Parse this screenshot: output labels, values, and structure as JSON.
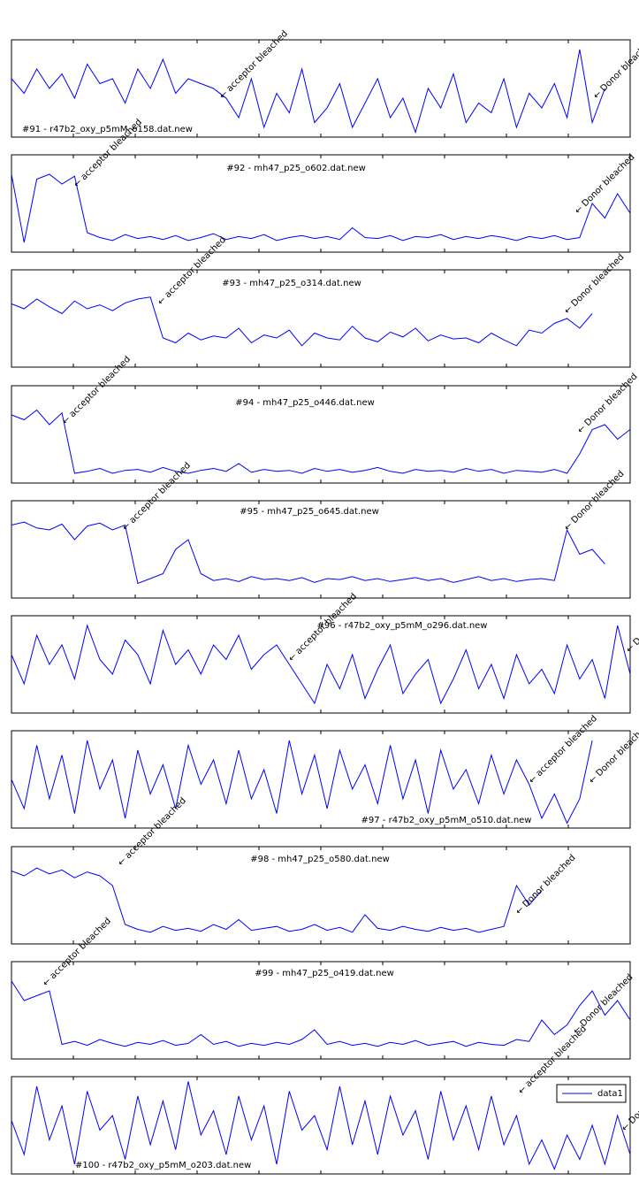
{
  "chart_data": [
    {
      "type": "line",
      "title": "#91 - r47b2_oxy_p5mM_o158.dat.new",
      "annotations": [
        "← acceptor bleached",
        "← Donor bleached"
      ],
      "color": "#0000ff",
      "ylim": [
        0,
        1
      ],
      "values": [
        0.6,
        0.45,
        0.7,
        0.5,
        0.65,
        0.4,
        0.75,
        0.55,
        0.6,
        0.35,
        0.7,
        0.5,
        0.8,
        0.45,
        0.6,
        0.55,
        0.5,
        0.4,
        0.2,
        0.6,
        0.1,
        0.45,
        0.25,
        0.7,
        0.15,
        0.3,
        0.55,
        0.1,
        0.35,
        0.6,
        0.2,
        0.4,
        0.05,
        0.5,
        0.3,
        0.65,
        0.15,
        0.35,
        0.25,
        0.6,
        0.1,
        0.45,
        0.3,
        0.55,
        0.2,
        0.9,
        0.15,
        0.5,
        null,
        null
      ]
    },
    {
      "type": "line",
      "title": "#92 - mh47_p25_o602.dat.new",
      "annotations": [
        "← acceptor bleached",
        "← Donor bleached"
      ],
      "color": "#0000ff",
      "ylim": [
        0,
        1
      ],
      "values": [
        0.8,
        0.1,
        0.75,
        0.8,
        0.7,
        0.78,
        0.2,
        0.15,
        0.12,
        0.18,
        0.14,
        0.16,
        0.13,
        0.17,
        0.12,
        0.15,
        0.19,
        0.13,
        0.16,
        0.14,
        0.18,
        0.12,
        0.15,
        0.17,
        0.14,
        0.16,
        0.13,
        0.25,
        0.15,
        0.14,
        0.17,
        0.12,
        0.16,
        0.15,
        0.18,
        0.13,
        0.16,
        0.14,
        0.17,
        0.15,
        0.12,
        0.16,
        0.14,
        0.17,
        0.13,
        0.15,
        0.5,
        0.35,
        0.6,
        0.4
      ]
    },
    {
      "type": "line",
      "title": "#93 - mh47_p25_o314.dat.new",
      "annotations": [
        "← acceptor bleached",
        "← Donor bleached"
      ],
      "color": "#0000ff",
      "ylim": [
        0,
        1
      ],
      "values": [
        0.65,
        0.6,
        0.7,
        0.62,
        0.55,
        0.68,
        0.6,
        0.64,
        0.58,
        0.66,
        0.7,
        0.72,
        0.3,
        0.25,
        0.35,
        0.28,
        0.32,
        0.3,
        0.4,
        0.25,
        0.33,
        0.3,
        0.38,
        0.22,
        0.35,
        0.3,
        0.28,
        0.42,
        0.3,
        0.26,
        0.36,
        0.31,
        0.4,
        0.27,
        0.33,
        0.29,
        0.3,
        0.25,
        0.35,
        0.28,
        0.22,
        0.38,
        0.35,
        0.45,
        0.5,
        0.4,
        0.55,
        null,
        null,
        null
      ]
    },
    {
      "type": "line",
      "title": "#94 - mh47_p25_o446.dat.new",
      "annotations": [
        "← acceptor bleached",
        "← Donor bleached"
      ],
      "color": "#0000ff",
      "ylim": [
        0,
        1
      ],
      "values": [
        0.7,
        0.65,
        0.75,
        0.6,
        0.72,
        0.1,
        0.12,
        0.15,
        0.1,
        0.13,
        0.14,
        0.11,
        0.16,
        0.12,
        0.1,
        0.13,
        0.15,
        0.12,
        0.2,
        0.11,
        0.14,
        0.12,
        0.13,
        0.1,
        0.15,
        0.12,
        0.14,
        0.11,
        0.13,
        0.16,
        0.12,
        0.1,
        0.14,
        0.12,
        0.13,
        0.11,
        0.15,
        0.12,
        0.14,
        0.1,
        0.13,
        0.12,
        0.11,
        0.14,
        0.1,
        0.3,
        0.55,
        0.6,
        0.45,
        0.55
      ]
    },
    {
      "type": "line",
      "title": "#95 - mh47_p25_o645.dat.new",
      "annotations": [
        "← acceptor bleached",
        "← Donor bleached"
      ],
      "color": "#0000ff",
      "ylim": [
        0,
        1
      ],
      "values": [
        0.75,
        0.78,
        0.72,
        0.7,
        0.76,
        0.6,
        0.74,
        0.77,
        0.7,
        0.75,
        0.15,
        0.2,
        0.25,
        0.5,
        0.6,
        0.25,
        0.18,
        0.2,
        0.17,
        0.22,
        0.19,
        0.2,
        0.18,
        0.21,
        0.16,
        0.2,
        0.19,
        0.22,
        0.18,
        0.2,
        0.17,
        0.19,
        0.21,
        0.18,
        0.2,
        0.16,
        0.19,
        0.22,
        0.18,
        0.2,
        0.17,
        0.19,
        0.2,
        0.18,
        0.7,
        0.45,
        0.5,
        0.35,
        null,
        null
      ]
    },
    {
      "type": "line",
      "title": "#96 - r47b2_oxy_p5mM_o296.dat.new",
      "annotations": [
        "← acceptor bleached",
        "← Donor bleached"
      ],
      "color": "#0000ff",
      "ylim": [
        0,
        1
      ],
      "values": [
        0.6,
        0.3,
        0.8,
        0.5,
        0.7,
        0.35,
        0.9,
        0.55,
        0.4,
        0.75,
        0.6,
        0.3,
        0.85,
        0.5,
        0.65,
        0.4,
        0.7,
        0.55,
        0.8,
        0.45,
        0.6,
        0.7,
        0.5,
        0.3,
        0.1,
        0.5,
        0.25,
        0.6,
        0.15,
        0.45,
        0.7,
        0.2,
        0.4,
        0.55,
        0.1,
        0.35,
        0.65,
        0.25,
        0.5,
        0.15,
        0.6,
        0.3,
        0.45,
        0.2,
        0.7,
        0.35,
        0.55,
        0.15,
        0.9,
        0.4
      ]
    },
    {
      "type": "line",
      "title": "#97 - r47b2_oxy_p5mM_o510.dat.new",
      "annotations": [
        "← acceptor bleached",
        "← Donor bleached"
      ],
      "color": "#0000ff",
      "ylim": [
        0,
        1
      ],
      "values": [
        0.5,
        0.2,
        0.85,
        0.3,
        0.75,
        0.15,
        0.9,
        0.4,
        0.7,
        0.1,
        0.8,
        0.35,
        0.65,
        0.2,
        0.85,
        0.45,
        0.7,
        0.25,
        0.8,
        0.3,
        0.6,
        0.15,
        0.9,
        0.35,
        0.75,
        0.2,
        0.8,
        0.4,
        0.65,
        0.25,
        0.85,
        0.3,
        0.7,
        0.15,
        0.8,
        0.4,
        0.6,
        0.25,
        0.75,
        0.35,
        0.7,
        0.45,
        0.1,
        0.35,
        0.05,
        0.3,
        0.9,
        null,
        null,
        null
      ]
    },
    {
      "type": "line",
      "title": "#98 - mh47_p25_o580.dat.new",
      "annotations": [
        "← acceptor bleached",
        "← Donor bleached"
      ],
      "color": "#0000ff",
      "ylim": [
        0,
        1
      ],
      "values": [
        0.75,
        0.7,
        0.78,
        0.72,
        0.76,
        0.68,
        0.74,
        0.7,
        0.6,
        0.2,
        0.15,
        0.12,
        0.18,
        0.14,
        0.16,
        0.13,
        0.2,
        0.15,
        0.25,
        0.14,
        0.16,
        0.18,
        0.13,
        0.15,
        0.2,
        0.14,
        0.17,
        0.12,
        0.3,
        0.16,
        0.14,
        0.18,
        0.15,
        0.13,
        0.17,
        0.14,
        0.16,
        0.12,
        0.15,
        0.18,
        0.6,
        0.4,
        0.55,
        null,
        null,
        null,
        null,
        null,
        null,
        null
      ]
    },
    {
      "type": "line",
      "title": "#99 - mh47_p25_o419.dat.new",
      "annotations": [
        "← acceptor bleached",
        "← Donor bleached"
      ],
      "color": "#0000ff",
      "ylim": [
        0,
        1
      ],
      "values": [
        0.8,
        0.6,
        0.65,
        0.7,
        0.15,
        0.18,
        0.14,
        0.2,
        0.16,
        0.13,
        0.17,
        0.15,
        0.19,
        0.14,
        0.16,
        0.25,
        0.15,
        0.18,
        0.13,
        0.16,
        0.14,
        0.17,
        0.15,
        0.2,
        0.3,
        0.15,
        0.18,
        0.14,
        0.16,
        0.13,
        0.17,
        0.15,
        0.19,
        0.14,
        0.16,
        0.18,
        0.13,
        0.17,
        0.15,
        0.14,
        0.2,
        0.18,
        0.4,
        0.25,
        0.35,
        0.55,
        0.7,
        0.45,
        0.6,
        0.4
      ]
    },
    {
      "type": "line",
      "title": "#100 - r47b2_oxy_p5mM_o203.dat.new",
      "annotations": [
        "← acceptor bleached",
        "← Donor bleached"
      ],
      "ylim": [
        0,
        1
      ],
      "legend": "upper right",
      "series": [
        {
          "name": "data1",
          "color": "#0000ff",
          "values": [
            0.55,
            0.2,
            0.9,
            0.35,
            0.7,
            0.1,
            0.85,
            0.45,
            0.6,
            0.15,
            0.8,
            0.3,
            0.75,
            0.25,
            0.95,
            0.4,
            0.65,
            0.2,
            0.8,
            0.35,
            0.7,
            0.1,
            0.85,
            0.45,
            0.6,
            0.25,
            0.9,
            0.3,
            0.75,
            0.2,
            0.8,
            0.4,
            0.65,
            0.15,
            0.85,
            0.35,
            0.7,
            0.25,
            0.8,
            0.3,
            0.6,
            0.1,
            0.35,
            0.05,
            0.4,
            0.15,
            0.5,
            0.1,
            0.6,
            0.2
          ]
        }
      ]
    }
  ]
}
